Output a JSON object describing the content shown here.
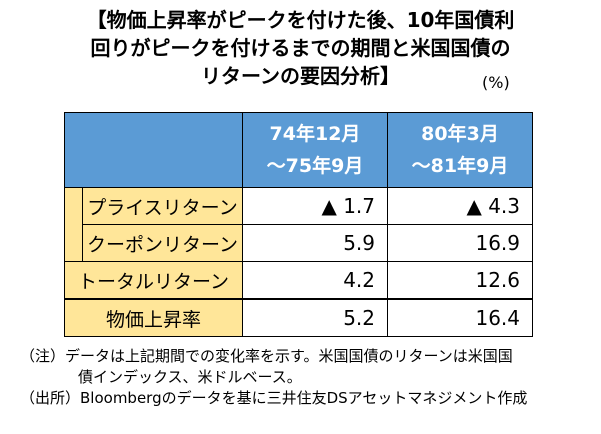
{
  "title": {
    "line1": "【物価上昇率がピークを付けた後、10年国債利",
    "line2": "回りがピークを付けるまでの期間と米国国債の",
    "line3": "リターンの要因分析】"
  },
  "unit": "(%)",
  "table": {
    "columns": [
      {
        "line1": "74年12月",
        "line2": "～75年9月"
      },
      {
        "line1": "80年3月",
        "line2": "～81年9月"
      }
    ],
    "rows": [
      {
        "label": "プライスリターン",
        "values": [
          "▲ 1.7",
          "▲ 4.3"
        ]
      },
      {
        "label": "クーポンリターン",
        "values": [
          "5.9",
          "16.9"
        ]
      },
      {
        "label": "トータルリターン",
        "values": [
          "4.2",
          "12.6"
        ]
      },
      {
        "label": "物価上昇率",
        "values": [
          "5.2",
          "16.4"
        ]
      }
    ]
  },
  "notes": {
    "line1": "（注）データは上記期間での変化率を示す。米国国債のリターンは米国国",
    "line2": "債インデックス、米ドルベース。",
    "line3": "（出所）Bloombergのデータを基に三井住友DSアセットマネジメント作成"
  }
}
